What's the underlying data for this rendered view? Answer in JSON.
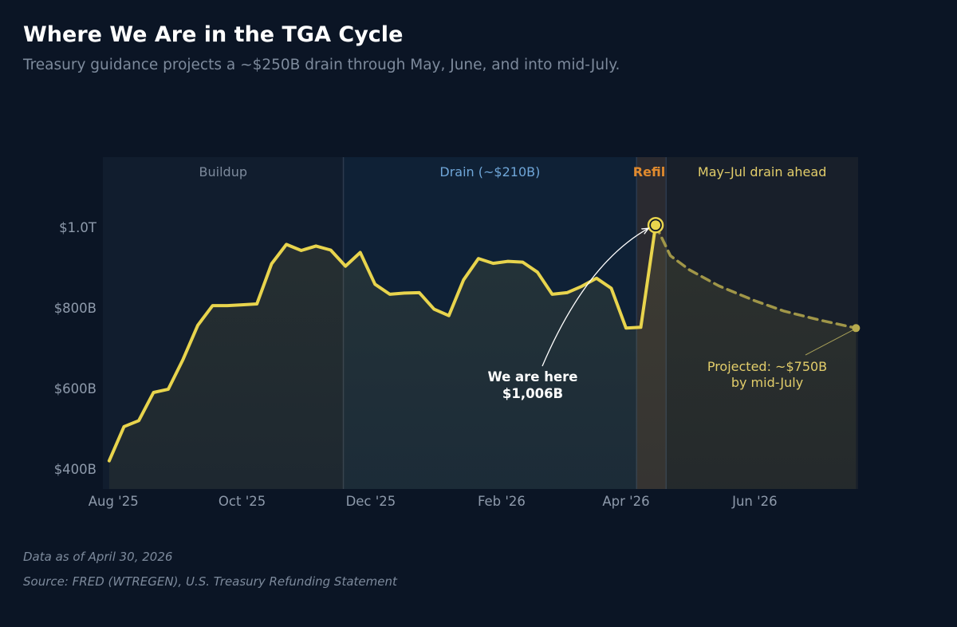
{
  "header": {
    "title": "Where We Are in the TGA Cycle",
    "subtitle": "Treasury guidance projects a ~$250B drain through May, June, and into mid-July."
  },
  "footer": {
    "data_note": "Data as of April 30, 2026",
    "source": "Source: FRED (WTREGEN), U.S. Treasury Refunding Statement"
  },
  "colors": {
    "background": "#0b1525",
    "line": "#e8d44d",
    "buildup_region": "#111d2e",
    "drain_region": "#0f2136",
    "refill_region": "#2a2a30",
    "ahead_region": "#181f2a",
    "drain_label": "#6fa6d8",
    "refill_label": "#e08a2e",
    "ahead_label": "#e2cd6a",
    "buildup_label": "#7d8a9c"
  },
  "chart_data": {
    "type": "line",
    "x_unit": "date",
    "y_unit": "billions USD",
    "ylim": [
      350,
      1175
    ],
    "xlim": [
      "2025-07-27",
      "2026-07-20"
    ],
    "y_ticks": [
      {
        "value": 400,
        "label": "$400B"
      },
      {
        "value": 600,
        "label": "$600B"
      },
      {
        "value": 800,
        "label": "$800B"
      },
      {
        "value": 1000,
        "label": "$1.0T"
      }
    ],
    "x_ticks": [
      {
        "date": "2025-08-01",
        "label": "Aug '25"
      },
      {
        "date": "2025-10-01",
        "label": "Oct '25"
      },
      {
        "date": "2025-12-01",
        "label": "Dec '25"
      },
      {
        "date": "2026-02-01",
        "label": "Feb '26"
      },
      {
        "date": "2026-04-01",
        "label": "Apr '26"
      },
      {
        "date": "2026-06-01",
        "label": "Jun '26"
      }
    ],
    "regions": [
      {
        "name": "Buildup",
        "start": "2025-07-27",
        "end": "2025-11-18",
        "color": "buildup_region",
        "label_color": "buildup_label",
        "bold": false
      },
      {
        "name": "Drain (~$210B)",
        "start": "2025-11-18",
        "end": "2026-04-06",
        "color": "drain_region",
        "label_color": "drain_label",
        "bold": false
      },
      {
        "name": "Refill",
        "start": "2026-04-06",
        "end": "2026-04-20",
        "color": "refill_region",
        "label_color": "refill_label",
        "bold": true
      },
      {
        "name": "May–Jul drain ahead",
        "start": "2026-04-20",
        "end": "2026-07-20",
        "color": "ahead_region",
        "label_color": "ahead_label",
        "bold": false
      }
    ],
    "series": [
      {
        "style": "solid",
        "points": [
          {
            "x": "2025-07-30",
            "y": 420
          },
          {
            "x": "2025-08-06",
            "y": 505
          },
          {
            "x": "2025-08-13",
            "y": 520
          },
          {
            "x": "2025-08-20",
            "y": 590
          },
          {
            "x": "2025-08-27",
            "y": 598
          },
          {
            "x": "2025-09-03",
            "y": 672
          },
          {
            "x": "2025-09-10",
            "y": 757
          },
          {
            "x": "2025-09-17",
            "y": 806
          },
          {
            "x": "2025-09-24",
            "y": 806
          },
          {
            "x": "2025-10-01",
            "y": 808
          },
          {
            "x": "2025-10-08",
            "y": 810
          },
          {
            "x": "2025-10-15",
            "y": 910
          },
          {
            "x": "2025-10-22",
            "y": 958
          },
          {
            "x": "2025-10-29",
            "y": 943
          },
          {
            "x": "2025-11-05",
            "y": 954
          },
          {
            "x": "2025-11-12",
            "y": 944
          },
          {
            "x": "2025-11-19",
            "y": 904
          },
          {
            "x": "2025-11-26",
            "y": 938
          },
          {
            "x": "2025-12-03",
            "y": 859
          },
          {
            "x": "2025-12-10",
            "y": 834
          },
          {
            "x": "2025-12-17",
            "y": 837
          },
          {
            "x": "2025-12-24",
            "y": 838
          },
          {
            "x": "2025-12-31",
            "y": 797
          },
          {
            "x": "2026-01-07",
            "y": 781
          },
          {
            "x": "2026-01-14",
            "y": 870
          },
          {
            "x": "2026-01-21",
            "y": 923
          },
          {
            "x": "2026-01-28",
            "y": 911
          },
          {
            "x": "2026-02-04",
            "y": 916
          },
          {
            "x": "2026-02-11",
            "y": 914
          },
          {
            "x": "2026-02-18",
            "y": 889
          },
          {
            "x": "2026-02-25",
            "y": 834
          },
          {
            "x": "2026-03-04",
            "y": 838
          },
          {
            "x": "2026-03-11",
            "y": 854
          },
          {
            "x": "2026-03-18",
            "y": 874
          },
          {
            "x": "2026-03-25",
            "y": 849
          },
          {
            "x": "2026-04-01",
            "y": 750
          },
          {
            "x": "2026-04-08",
            "y": 752
          },
          {
            "x": "2026-04-15",
            "y": 1006
          }
        ]
      },
      {
        "style": "dashed",
        "points": [
          {
            "x": "2026-04-15",
            "y": 1006
          },
          {
            "x": "2026-04-22",
            "y": 930
          },
          {
            "x": "2026-05-01",
            "y": 895
          },
          {
            "x": "2026-05-15",
            "y": 855
          },
          {
            "x": "2026-06-01",
            "y": 818
          },
          {
            "x": "2026-06-15",
            "y": 792
          },
          {
            "x": "2026-07-01",
            "y": 771
          },
          {
            "x": "2026-07-19",
            "y": 750
          }
        ]
      }
    ],
    "annotations": [
      {
        "lines": [
          "We are here",
          "$1,006B"
        ],
        "point": {
          "x": "2026-04-15",
          "y": 1006
        },
        "color": "#ffffff",
        "bold": true
      },
      {
        "lines": [
          "Projected: ~$750B",
          "by mid-July"
        ],
        "point": {
          "x": "2026-07-19",
          "y": 750
        },
        "color": "#e2cd6a",
        "bold": false
      }
    ]
  }
}
